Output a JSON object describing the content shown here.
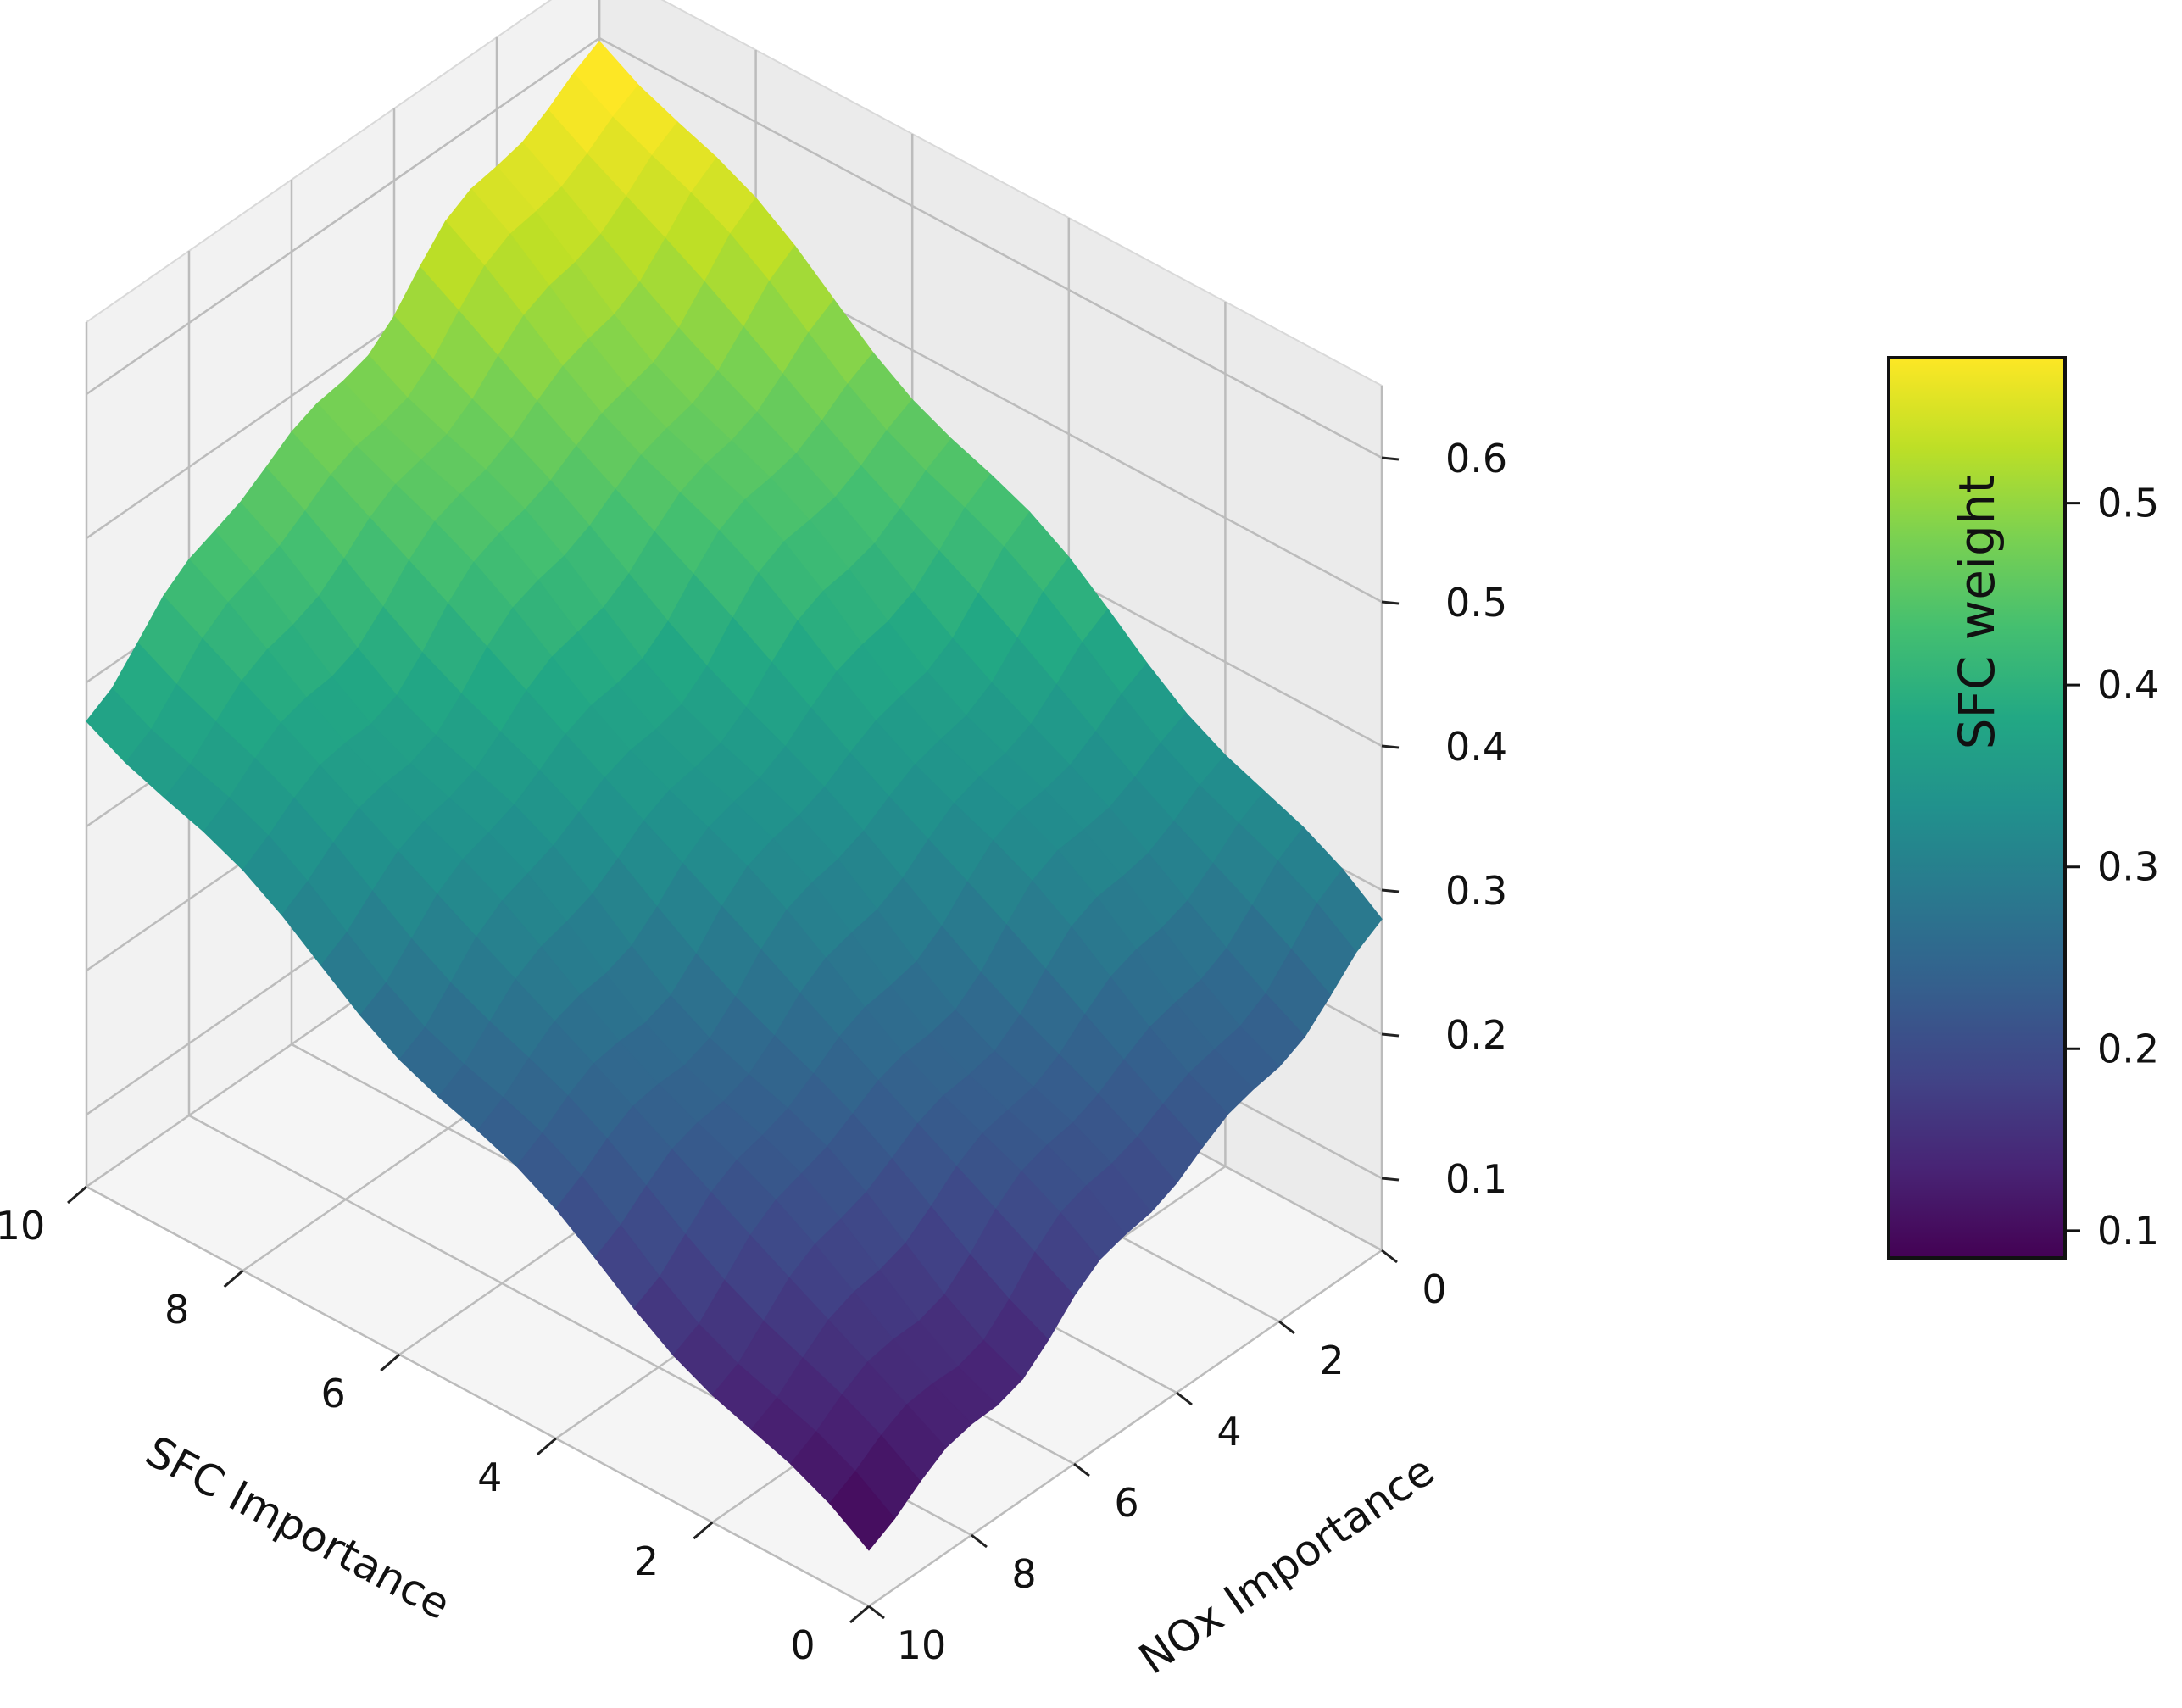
{
  "chart_data": {
    "type": "surface3d",
    "colormap": "viridis",
    "x_axis": {
      "label": "SFC Importance",
      "range": [
        0,
        10
      ],
      "ticks": [
        "0",
        "2",
        "4",
        "6",
        "8",
        "10"
      ]
    },
    "y_axis": {
      "label": "NOx Importance",
      "range": [
        0,
        10
      ],
      "ticks": [
        "0",
        "2",
        "4",
        "6",
        "8",
        "10"
      ]
    },
    "z_axis": {
      "label": "",
      "range": [
        0.05,
        0.65
      ],
      "ticks": [
        "0.1",
        "0.2",
        "0.3",
        "0.4",
        "0.5",
        "0.6"
      ]
    },
    "colorbar": {
      "label": "SFC weight",
      "range": [
        0.085,
        0.58
      ],
      "ticks": [
        "0.1",
        "0.2",
        "0.3",
        "0.4",
        "0.5"
      ]
    },
    "surface": {
      "x": [
        0,
        10
      ],
      "y": [
        0,
        10
      ],
      "z_corners": {
        "sfc0_nox0": 0.27,
        "sfc10_nox0": 0.6,
        "sfc0_nox10": 0.09,
        "sfc10_nox10": 0.385
      },
      "grid_size": 21
    },
    "grid": true
  }
}
